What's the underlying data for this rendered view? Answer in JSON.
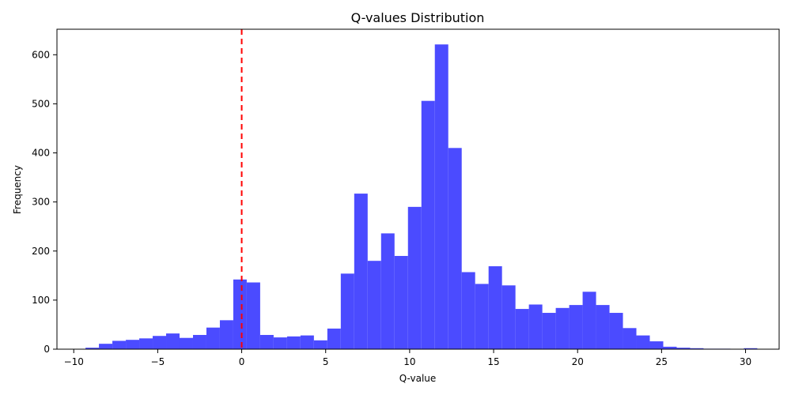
{
  "chart_data": {
    "type": "bar",
    "title": "Q-values Distribution",
    "xlabel": "Q-value",
    "ylabel": "Frequency",
    "xlim": [
      -11,
      32
    ],
    "ylim": [
      0,
      652
    ],
    "xticks": [
      -10,
      -5,
      0,
      5,
      10,
      15,
      20,
      25,
      30
    ],
    "xtick_labels": [
      "−10",
      "−5",
      "0",
      "5",
      "10",
      "15",
      "20",
      "25",
      "30"
    ],
    "yticks": [
      0,
      100,
      200,
      300,
      400,
      500,
      600
    ],
    "ytick_labels": [
      "0",
      "100",
      "200",
      "300",
      "400",
      "500",
      "600"
    ],
    "grid": false,
    "bin_edges": [
      -9.3,
      -8.5,
      -7.7,
      -6.9,
      -6.1,
      -5.3,
      -4.5,
      -3.7,
      -2.9,
      -2.1,
      -1.3,
      -0.5,
      0.3,
      1.1,
      1.9,
      2.7,
      3.5,
      4.3,
      5.1,
      5.9,
      6.7,
      7.5,
      8.3,
      9.1,
      9.9,
      10.7,
      11.5,
      12.3,
      13.1,
      13.9,
      14.7,
      15.5,
      16.3,
      17.1,
      17.9,
      18.7,
      19.5,
      20.3,
      21.1,
      21.9,
      22.7,
      23.5,
      24.3,
      25.1,
      25.9,
      26.7,
      27.5,
      28.3,
      29.1,
      29.9,
      30.7
    ],
    "values": [
      3,
      11,
      17,
      19,
      22,
      27,
      32,
      23,
      29,
      44,
      59,
      142,
      136,
      29,
      24,
      26,
      28,
      18,
      42,
      154,
      317,
      180,
      236,
      190,
      290,
      506,
      621,
      410,
      157,
      133,
      169,
      130,
      82,
      91,
      74,
      84,
      90,
      117,
      90,
      74,
      43,
      28,
      16,
      5,
      3,
      2,
      1,
      1,
      0,
      2
    ],
    "bar_color": "#4b4bff",
    "reference_line": {
      "x": 0,
      "color": "#ff0000",
      "style": "dashed"
    }
  }
}
